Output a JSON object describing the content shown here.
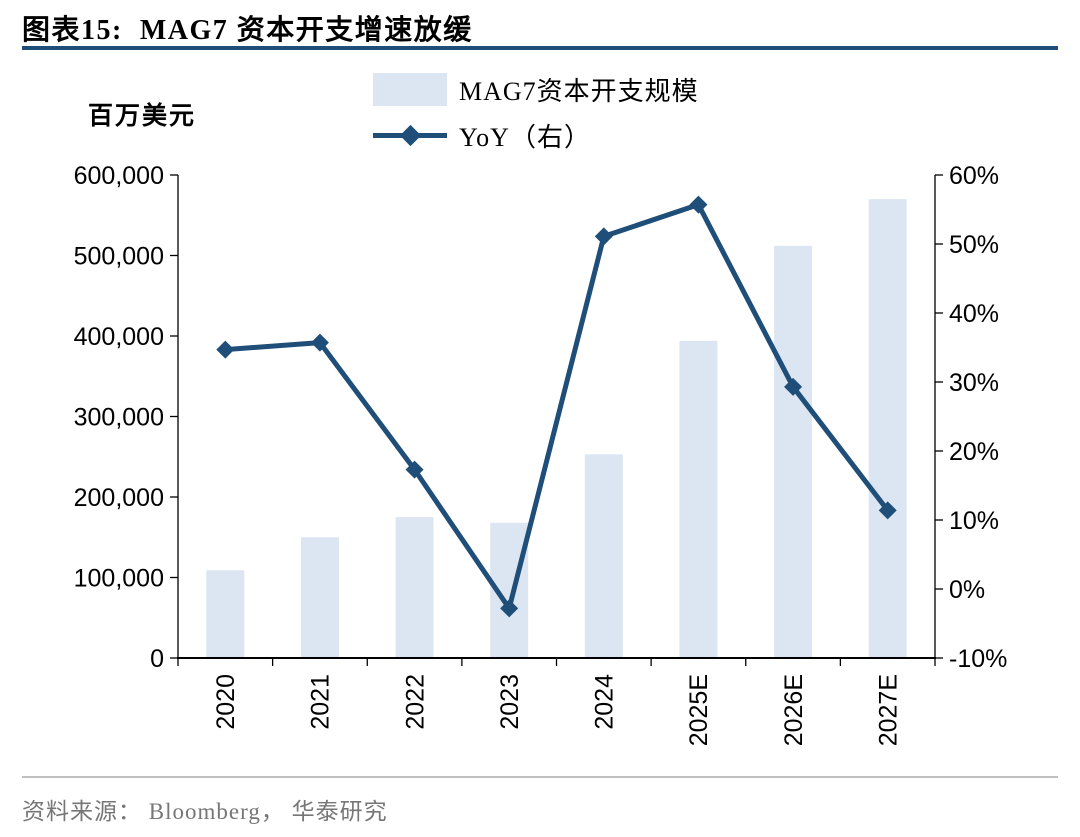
{
  "header": {
    "title": "图表15:  MAG7 资本开支增速放缓"
  },
  "colors": {
    "navy": "#1f4e79",
    "bar_fill": "#dce6f2",
    "axis_black": "#000000",
    "footer_gray": "#767676"
  },
  "chart_data": {
    "type": "bar",
    "subtype": "bar-line-combo-dual-axis",
    "categories": [
      "2020",
      "2021",
      "2022",
      "2023",
      "2024",
      "2025E",
      "2026E",
      "2027E"
    ],
    "series": [
      {
        "name": "MAG7资本开支规模",
        "type": "bar",
        "axis": "left",
        "color": "#dce6f2",
        "values": [
          109000,
          150000,
          175000,
          168000,
          253000,
          394000,
          512000,
          570000
        ]
      },
      {
        "name": "YoY（右）",
        "type": "line",
        "axis": "right",
        "color": "#1f4e79",
        "marker": "diamond",
        "values": [
          34.7,
          35.7,
          17.3,
          -2.8,
          51.1,
          55.7,
          29.3,
          11.4
        ]
      }
    ],
    "left_axis": {
      "label": "百万美元",
      "min": 0,
      "max": 600000,
      "step": 100000,
      "tick_labels": [
        "0",
        "100,000",
        "200,000",
        "300,000",
        "400,000",
        "500,000",
        "600,000"
      ]
    },
    "right_axis": {
      "label": "",
      "min": -10,
      "max": 60,
      "step": 10,
      "tick_labels": [
        "-10%",
        "0%",
        "10%",
        "20%",
        "30%",
        "40%",
        "50%",
        "60%"
      ]
    },
    "grid": false,
    "legend_position": "top"
  },
  "footer": {
    "source": "资料来源： Bloomberg， 华泰研究"
  }
}
